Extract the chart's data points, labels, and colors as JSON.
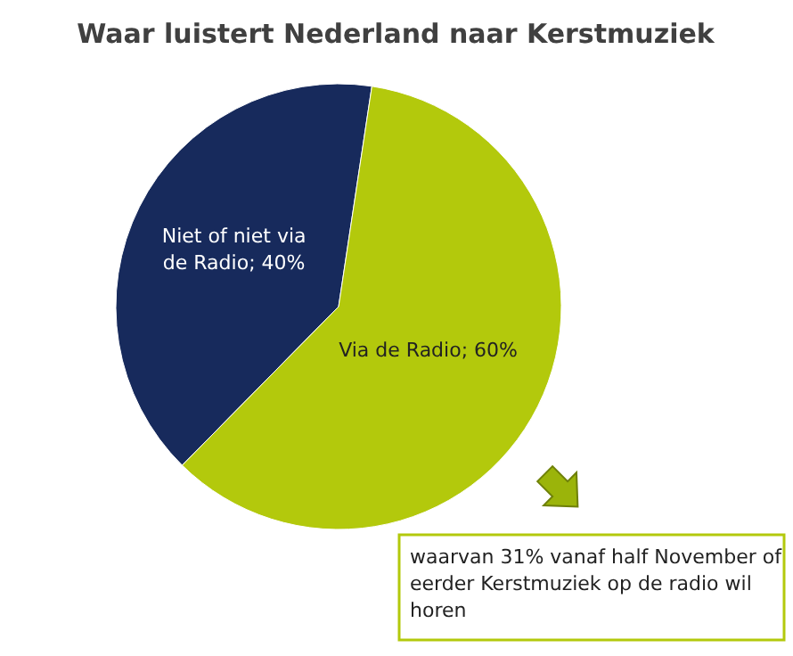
{
  "chart_data": {
    "type": "pie",
    "title": "Waar luistert Nederland naar Kerstmuziek",
    "categories": [
      "Niet of niet via de Radio",
      "Via de Radio"
    ],
    "values": [
      40,
      60
    ],
    "value_labels": [
      "40%",
      "60%"
    ],
    "legend": false,
    "colors": [
      "#172a5c",
      "#b3c90c"
    ],
    "data_labels": true,
    "annotations": [
      "waarvan 31%  vanaf half November of eerder Kerstmuziek op de radio wil horen"
    ]
  }
}
